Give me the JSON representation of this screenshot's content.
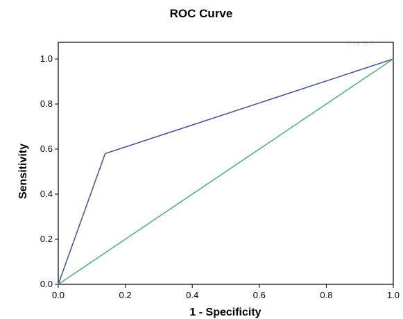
{
  "chart_data": {
    "type": "line",
    "title": "ROC Curve",
    "xlabel": "1 - Specificity",
    "ylabel": "Sensitivity",
    "xlim": [
      0,
      1
    ],
    "ylim": [
      0,
      1
    ],
    "x_ticks": [
      "0.0",
      "0.2",
      "0.4",
      "0.6",
      "0.8",
      "1.0"
    ],
    "y_ticks": [
      "0.0",
      "0.2",
      "0.4",
      "0.6",
      "0.8",
      "1.0"
    ],
    "grid": false,
    "series": [
      {
        "color": "#4a5896",
        "x": [
          0,
          0.14,
          1
        ],
        "y": [
          0,
          0.58,
          1
        ]
      },
      {
        "color": "#55b27a",
        "x": [
          0,
          1
        ],
        "y": [
          0,
          1
        ]
      }
    ],
    "watermark": "Free Soft"
  }
}
